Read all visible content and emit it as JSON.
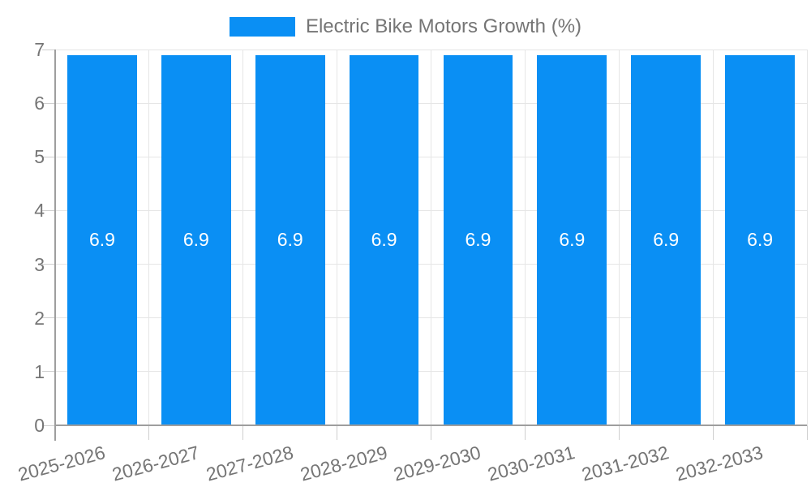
{
  "chart_data": {
    "type": "bar",
    "title": "Electric Bike Motors Growth (%)",
    "categories": [
      "2025-2026",
      "2026-2027",
      "2027-2028",
      "2028-2029",
      "2029-2030",
      "2030-2031",
      "2031-2032",
      "2032-2033"
    ],
    "values": [
      6.9,
      6.9,
      6.9,
      6.9,
      6.9,
      6.9,
      6.9,
      6.9
    ],
    "value_labels": [
      "6.9",
      "6.9",
      "6.9",
      "6.9",
      "6.9",
      "6.9",
      "6.9",
      "6.9"
    ],
    "xlabel": "",
    "ylabel": "",
    "ylim": [
      0,
      7
    ],
    "yticks": [
      0,
      1,
      2,
      3,
      4,
      5,
      6,
      7
    ],
    "grid": true,
    "legend_position": "top-center",
    "colors": {
      "bar": "#0a8ff4",
      "grid": "#e6e6e6",
      "tick": "#cfcfcf",
      "axis": "#9e9e9e",
      "text": "#757575",
      "value_label": "#ffffff",
      "background": "#ffffff"
    }
  }
}
